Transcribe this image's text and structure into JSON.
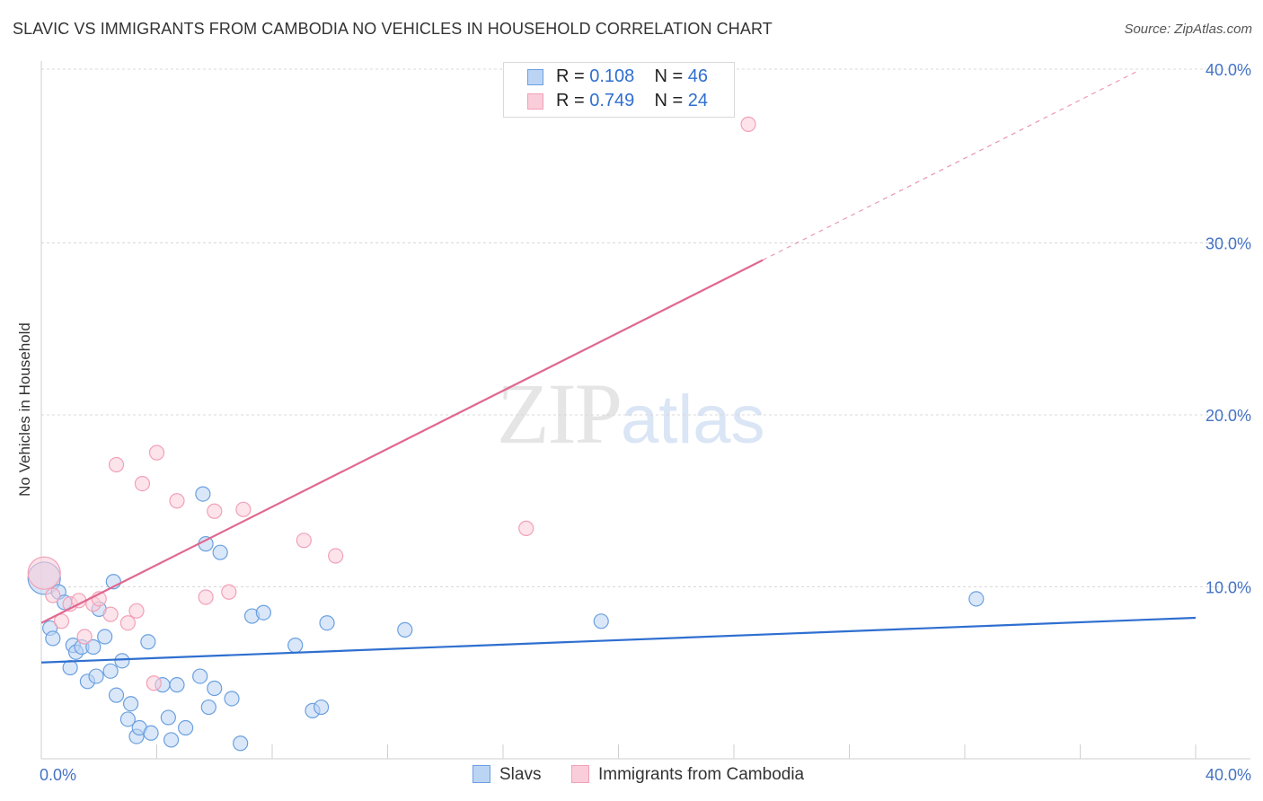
{
  "chart_data": {
    "type": "scatter",
    "title": "SLAVIC VS IMMIGRANTS FROM CAMBODIA NO VEHICLES IN HOUSEHOLD CORRELATION CHART",
    "source": "Source: ZipAtlas.com",
    "ylabel": "No Vehicles in Household",
    "xlabel": "",
    "xlim": [
      0,
      40
    ],
    "ylim": [
      0,
      40
    ],
    "x_tick_labels": [
      "0.0%",
      "40.0%"
    ],
    "y_tick_labels": [
      "10.0%",
      "20.0%",
      "30.0%",
      "40.0%"
    ],
    "y_ticks": [
      10,
      20,
      30,
      40
    ],
    "watermark": {
      "zip": "ZIP",
      "atlas": "atlas"
    },
    "legend": {
      "labels": {
        "r": "R =",
        "n": "N ="
      },
      "rows": [
        {
          "name": "Slavs",
          "r": "0.108",
          "n": "46"
        },
        {
          "name": "Immigrants from Cambodia",
          "r": "0.749",
          "n": "24"
        }
      ]
    },
    "series": [
      {
        "name": "Slavs",
        "color": "#6aa0e0",
        "fill": "#bcd4f4",
        "line_color": "#2f6fd0",
        "trend": {
          "x0": 0,
          "y0": 5.6,
          "x1": 40,
          "y1": 8.2,
          "dashed_to": null
        },
        "points": [
          [
            0.1,
            10.5
          ],
          [
            0.3,
            7.6
          ],
          [
            0.4,
            7.0
          ],
          [
            0.6,
            9.7
          ],
          [
            0.8,
            9.1
          ],
          [
            1.0,
            5.3
          ],
          [
            1.1,
            6.6
          ],
          [
            1.2,
            6.2
          ],
          [
            1.4,
            6.5
          ],
          [
            1.6,
            4.5
          ],
          [
            1.8,
            6.5
          ],
          [
            1.9,
            4.8
          ],
          [
            2.0,
            8.7
          ],
          [
            2.2,
            7.1
          ],
          [
            2.4,
            5.1
          ],
          [
            2.5,
            10.3
          ],
          [
            2.6,
            3.7
          ],
          [
            2.8,
            5.7
          ],
          [
            3.0,
            2.3
          ],
          [
            3.1,
            3.2
          ],
          [
            3.3,
            1.3
          ],
          [
            3.4,
            1.8
          ],
          [
            3.7,
            6.8
          ],
          [
            3.8,
            1.5
          ],
          [
            4.2,
            4.3
          ],
          [
            4.4,
            2.4
          ],
          [
            4.5,
            1.1
          ],
          [
            4.7,
            4.3
          ],
          [
            5.0,
            1.8
          ],
          [
            5.5,
            4.8
          ],
          [
            5.6,
            15.4
          ],
          [
            5.7,
            12.5
          ],
          [
            5.8,
            3.0
          ],
          [
            6.0,
            4.1
          ],
          [
            6.2,
            12.0
          ],
          [
            6.6,
            3.5
          ],
          [
            6.9,
            0.9
          ],
          [
            7.3,
            8.3
          ],
          [
            7.7,
            8.5
          ],
          [
            8.8,
            6.6
          ],
          [
            9.4,
            2.8
          ],
          [
            9.7,
            3.0
          ],
          [
            9.9,
            7.9
          ],
          [
            12.6,
            7.5
          ],
          [
            19.4,
            8.0
          ],
          [
            32.4,
            9.3
          ]
        ]
      },
      {
        "name": "Immigrants from Cambodia",
        "color": "#f2a0b8",
        "fill": "#f9cdd9",
        "line_color": "#e06890",
        "trend": {
          "x0": 0,
          "y0": 7.9,
          "x1": 25,
          "y1": 29.0,
          "dashed_to": {
            "x": 38,
            "y": 40.0
          }
        },
        "points": [
          [
            0.1,
            10.8
          ],
          [
            0.4,
            9.5
          ],
          [
            0.7,
            8.0
          ],
          [
            1.0,
            9.0
          ],
          [
            1.3,
            9.2
          ],
          [
            1.5,
            7.1
          ],
          [
            1.8,
            9.0
          ],
          [
            2.0,
            9.3
          ],
          [
            2.4,
            8.4
          ],
          [
            2.6,
            17.1
          ],
          [
            3.0,
            7.9
          ],
          [
            3.3,
            8.6
          ],
          [
            3.5,
            16.0
          ],
          [
            3.9,
            4.4
          ],
          [
            4.0,
            17.8
          ],
          [
            4.7,
            15.0
          ],
          [
            5.7,
            9.4
          ],
          [
            6.0,
            14.4
          ],
          [
            6.5,
            9.7
          ],
          [
            7.0,
            14.5
          ],
          [
            9.1,
            12.7
          ],
          [
            10.2,
            11.8
          ],
          [
            16.8,
            13.4
          ],
          [
            24.5,
            36.9
          ]
        ]
      }
    ]
  }
}
